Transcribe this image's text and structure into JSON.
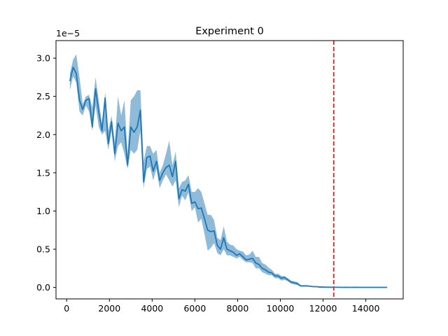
{
  "chart_data": {
    "type": "line",
    "title": "Experiment 0",
    "xlabel": "",
    "ylabel": "",
    "y_offset_label": "1e−5",
    "y_scale_exponent": -5,
    "xlim": [
      -500,
      15750
    ],
    "ylim": [
      -1.5e-06,
      3.23e-05
    ],
    "xticks": [
      0,
      2000,
      4000,
      6000,
      8000,
      10000,
      12000,
      14000
    ],
    "xtick_labels": [
      "0",
      "2000",
      "4000",
      "6000",
      "8000",
      "10000",
      "12000",
      "14000"
    ],
    "yticks": [
      0,
      5e-06,
      1e-05,
      1.5e-05,
      2e-05,
      2.5e-05,
      3e-05
    ],
    "ytick_labels": [
      "0.0",
      "0.5",
      "1.0",
      "1.5",
      "2.0",
      "2.5",
      "3.0"
    ],
    "grid": false,
    "legend": "none",
    "vline": {
      "x": 12500,
      "color": "#d62728",
      "style": "dashed"
    },
    "series": [
      {
        "color": "#1f77b4",
        "band_color": "#1f77b4",
        "x": [
          150,
          300,
          450,
          600,
          750,
          900,
          1050,
          1200,
          1350,
          1500,
          1650,
          1800,
          1950,
          2100,
          2250,
          2400,
          2550,
          2700,
          2850,
          3000,
          3150,
          3300,
          3450,
          3600,
          3750,
          3900,
          4050,
          4200,
          4350,
          4500,
          4650,
          4800,
          4950,
          5100,
          5250,
          5400,
          5550,
          5700,
          5850,
          6000,
          6150,
          6300,
          6450,
          6600,
          6750,
          6900,
          7050,
          7200,
          7350,
          7500,
          7650,
          7800,
          7950,
          8100,
          8250,
          8400,
          8550,
          8700,
          8850,
          9000,
          9150,
          9300,
          9450,
          9600,
          9750,
          9900,
          10050,
          10200,
          10350,
          10500,
          10650,
          10800,
          10950,
          11100,
          11250,
          11400,
          11550,
          11700,
          11850,
          12000,
          12150,
          12300,
          12450,
          12600,
          12750,
          12900,
          13050,
          13200,
          13350,
          13500,
          13650,
          13800,
          13950,
          14100,
          14250,
          14400,
          14550,
          14700,
          14850,
          15000
        ],
        "y": [
          2.7e-05,
          2.88e-05,
          2.8e-05,
          2.45e-05,
          2.33e-05,
          2.45e-05,
          2.47e-05,
          2.1e-05,
          2.6e-05,
          2.3e-05,
          2.05e-05,
          2.48e-05,
          1.88e-05,
          2.17e-05,
          1.75e-05,
          2.15e-05,
          2.05e-05,
          2.1e-05,
          1.6e-05,
          2.1e-05,
          2.03e-05,
          2.1e-05,
          2.32e-05,
          1.38e-05,
          1.7e-05,
          1.72e-05,
          1.52e-05,
          1.65e-05,
          1.4e-05,
          1.5e-05,
          1.57e-05,
          1.6e-05,
          1.45e-05,
          1.65e-05,
          1.16e-05,
          1.28e-05,
          1.26e-05,
          1.35e-05,
          1.1e-05,
          1.12e-05,
          1.03e-05,
          1.04e-05,
          9e-06,
          7.5e-06,
          7.3e-06,
          7.4e-06,
          5.5e-06,
          5e-06,
          6.5e-06,
          5e-06,
          4.8e-06,
          4.6e-06,
          4.2e-06,
          4.4e-06,
          4e-06,
          3.6e-06,
          3.7e-06,
          3.8e-06,
          3.2e-06,
          3e-06,
          2.5e-06,
          2.3e-06,
          2e-06,
          1.9e-06,
          1.5e-06,
          1.5e-06,
          1.2e-06,
          1.3e-06,
          1e-06,
          7e-07,
          6e-07,
          5e-07,
          2e-07,
          2e-07,
          2e-07,
          1.5e-07,
          1e-07,
          1e-07,
          5e-08,
          5e-08,
          3e-08,
          3e-08,
          2e-08,
          2e-08,
          2e-08,
          1e-08,
          2e-08,
          1e-08,
          1e-08,
          2e-08,
          1e-08,
          1e-08,
          1e-08,
          1e-08,
          1e-08,
          1e-08,
          1e-08,
          1e-08,
          1e-08,
          1e-08
        ],
        "y_upper": [
          2.8e-05,
          2.98e-05,
          3.05e-05,
          2.75e-05,
          2.4e-05,
          2.5e-05,
          2.52e-05,
          2.35e-05,
          2.75e-05,
          2.45e-05,
          2.15e-05,
          2.55e-05,
          2.05e-05,
          2.25e-05,
          1.9e-05,
          2.5e-05,
          2.25e-05,
          2.45e-05,
          1.75e-05,
          2.45e-05,
          2.5e-05,
          2.58e-05,
          2.58e-05,
          1.65e-05,
          1.85e-05,
          1.85e-05,
          1.75e-05,
          1.8e-05,
          1.5e-05,
          1.6e-05,
          1.75e-05,
          1.92e-05,
          1.6e-05,
          1.78e-05,
          1.3e-05,
          1.38e-05,
          1.4e-05,
          1.47e-05,
          1.25e-05,
          1.25e-05,
          1.3e-05,
          1.25e-05,
          1.1e-05,
          9.5e-06,
          9.5e-06,
          8.8e-06,
          6.5e-06,
          6.2e-06,
          8e-06,
          6e-06,
          5.6e-06,
          5.5e-06,
          5e-06,
          4.8e-06,
          4.7e-06,
          4.2e-06,
          4.3e-06,
          4.8e-06,
          4e-06,
          4e-06,
          3.2e-06,
          3e-06,
          2.6e-06,
          2.3e-06,
          1.8e-06,
          1.8e-06,
          1.5e-06,
          1.5e-06,
          1.2e-06,
          9e-07,
          8e-07,
          7e-07,
          3e-07,
          3e-07,
          3e-07,
          2e-07,
          1.5e-07,
          1.5e-07,
          8e-08,
          8e-08,
          5e-08,
          5e-08,
          4e-08,
          4e-08,
          4e-08,
          2e-08,
          4e-08,
          2e-08,
          2e-08,
          3e-08,
          2e-08,
          2e-08,
          2e-08,
          2e-08,
          2e-08,
          2e-08,
          2e-08,
          2e-08,
          2e-08,
          2e-08
        ],
        "y_lower": [
          2.58e-05,
          2.76e-05,
          2.68e-05,
          2.3e-05,
          2.25e-05,
          2.38e-05,
          2.3e-05,
          2.05e-05,
          2.38e-05,
          2.1e-05,
          2e-05,
          2.05e-05,
          1.8e-05,
          2.05e-05,
          1.65e-05,
          1.85e-05,
          1.9e-05,
          1.75e-05,
          1.55e-05,
          1.8e-05,
          1.75e-05,
          1.8e-05,
          2.05e-05,
          1.3e-05,
          1.55e-05,
          1.58e-05,
          1.4e-05,
          1.55e-05,
          1.3e-05,
          1.4e-05,
          1.48e-05,
          1.4e-05,
          1.32e-05,
          1.4e-05,
          1.05e-05,
          1.2e-05,
          1.14e-05,
          1.24e-05,
          1e-05,
          1.05e-05,
          8.5e-06,
          9e-06,
          7e-06,
          4.8e-06,
          5.2e-06,
          5.8e-06,
          4.5e-06,
          4.2e-06,
          5e-06,
          4.2e-06,
          4.2e-06,
          4e-06,
          3.8e-06,
          4e-06,
          3.6e-06,
          3.3e-06,
          3.3e-06,
          3.2e-06,
          2.5e-06,
          2.5e-06,
          2e-06,
          1.8e-06,
          1.6e-06,
          1.6e-06,
          1.2e-06,
          1.2e-06,
          9e-07,
          1e-06,
          8e-07,
          5e-07,
          4e-07,
          3e-07,
          1e-07,
          1e-07,
          1e-07,
          1e-07,
          5e-08,
          5e-08,
          2e-08,
          2e-08,
          1e-08,
          1e-08,
          0.0,
          0.0,
          0.0,
          0.0,
          0.0,
          0.0,
          0.0,
          0.0,
          0.0,
          0.0,
          0.0,
          0.0,
          0.0,
          0.0,
          0.0,
          0.0,
          0.0,
          0.0
        ]
      }
    ]
  }
}
